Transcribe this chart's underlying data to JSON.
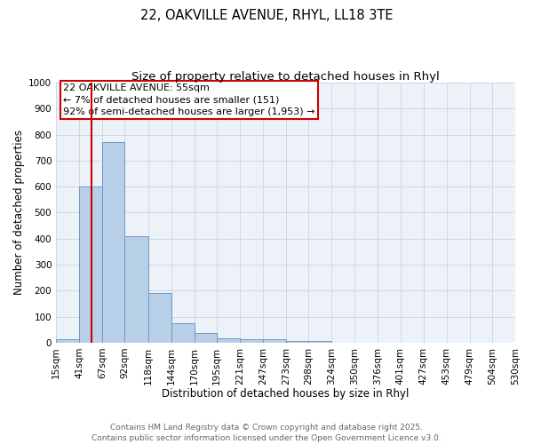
{
  "title_line1": "22, OAKVILLE AVENUE, RHYL, LL18 3TE",
  "title_line2": "Size of property relative to detached houses in Rhyl",
  "xlabel": "Distribution of detached houses by size in Rhyl",
  "ylabel": "Number of detached properties",
  "bins": [
    15,
    41,
    67,
    92,
    118,
    144,
    170,
    195,
    221,
    247,
    273,
    298,
    324,
    350,
    376,
    401,
    427,
    453,
    479,
    504,
    530
  ],
  "counts": [
    13,
    600,
    770,
    410,
    190,
    75,
    37,
    18,
    12,
    12,
    8,
    5,
    0,
    0,
    0,
    0,
    0,
    0,
    0,
    0
  ],
  "bar_color": "#b8cfe8",
  "bar_edge_color": "#7098c0",
  "bar_edge_width": 0.7,
  "red_line_x": 55,
  "red_line_color": "#cc0000",
  "annotation_line1": "22 OAKVILLE AVENUE: 55sqm",
  "annotation_line2": "← 7% of detached houses are smaller (151)",
  "annotation_line3": "92% of semi-detached houses are larger (1,953) →",
  "annotation_box_color": "#cc0000",
  "ylim": [
    0,
    1000
  ],
  "yticks": [
    0,
    100,
    200,
    300,
    400,
    500,
    600,
    700,
    800,
    900,
    1000
  ],
  "grid_color": "#c8d4e8",
  "background_color": "#edf2f9",
  "footer_line1": "Contains HM Land Registry data © Crown copyright and database right 2025.",
  "footer_line2": "Contains public sector information licensed under the Open Government Licence v3.0.",
  "title_fontsize": 10.5,
  "subtitle_fontsize": 9.5,
  "axis_label_fontsize": 8.5,
  "tick_fontsize": 7.5,
  "annotation_fontsize": 8,
  "footer_fontsize": 6.5
}
